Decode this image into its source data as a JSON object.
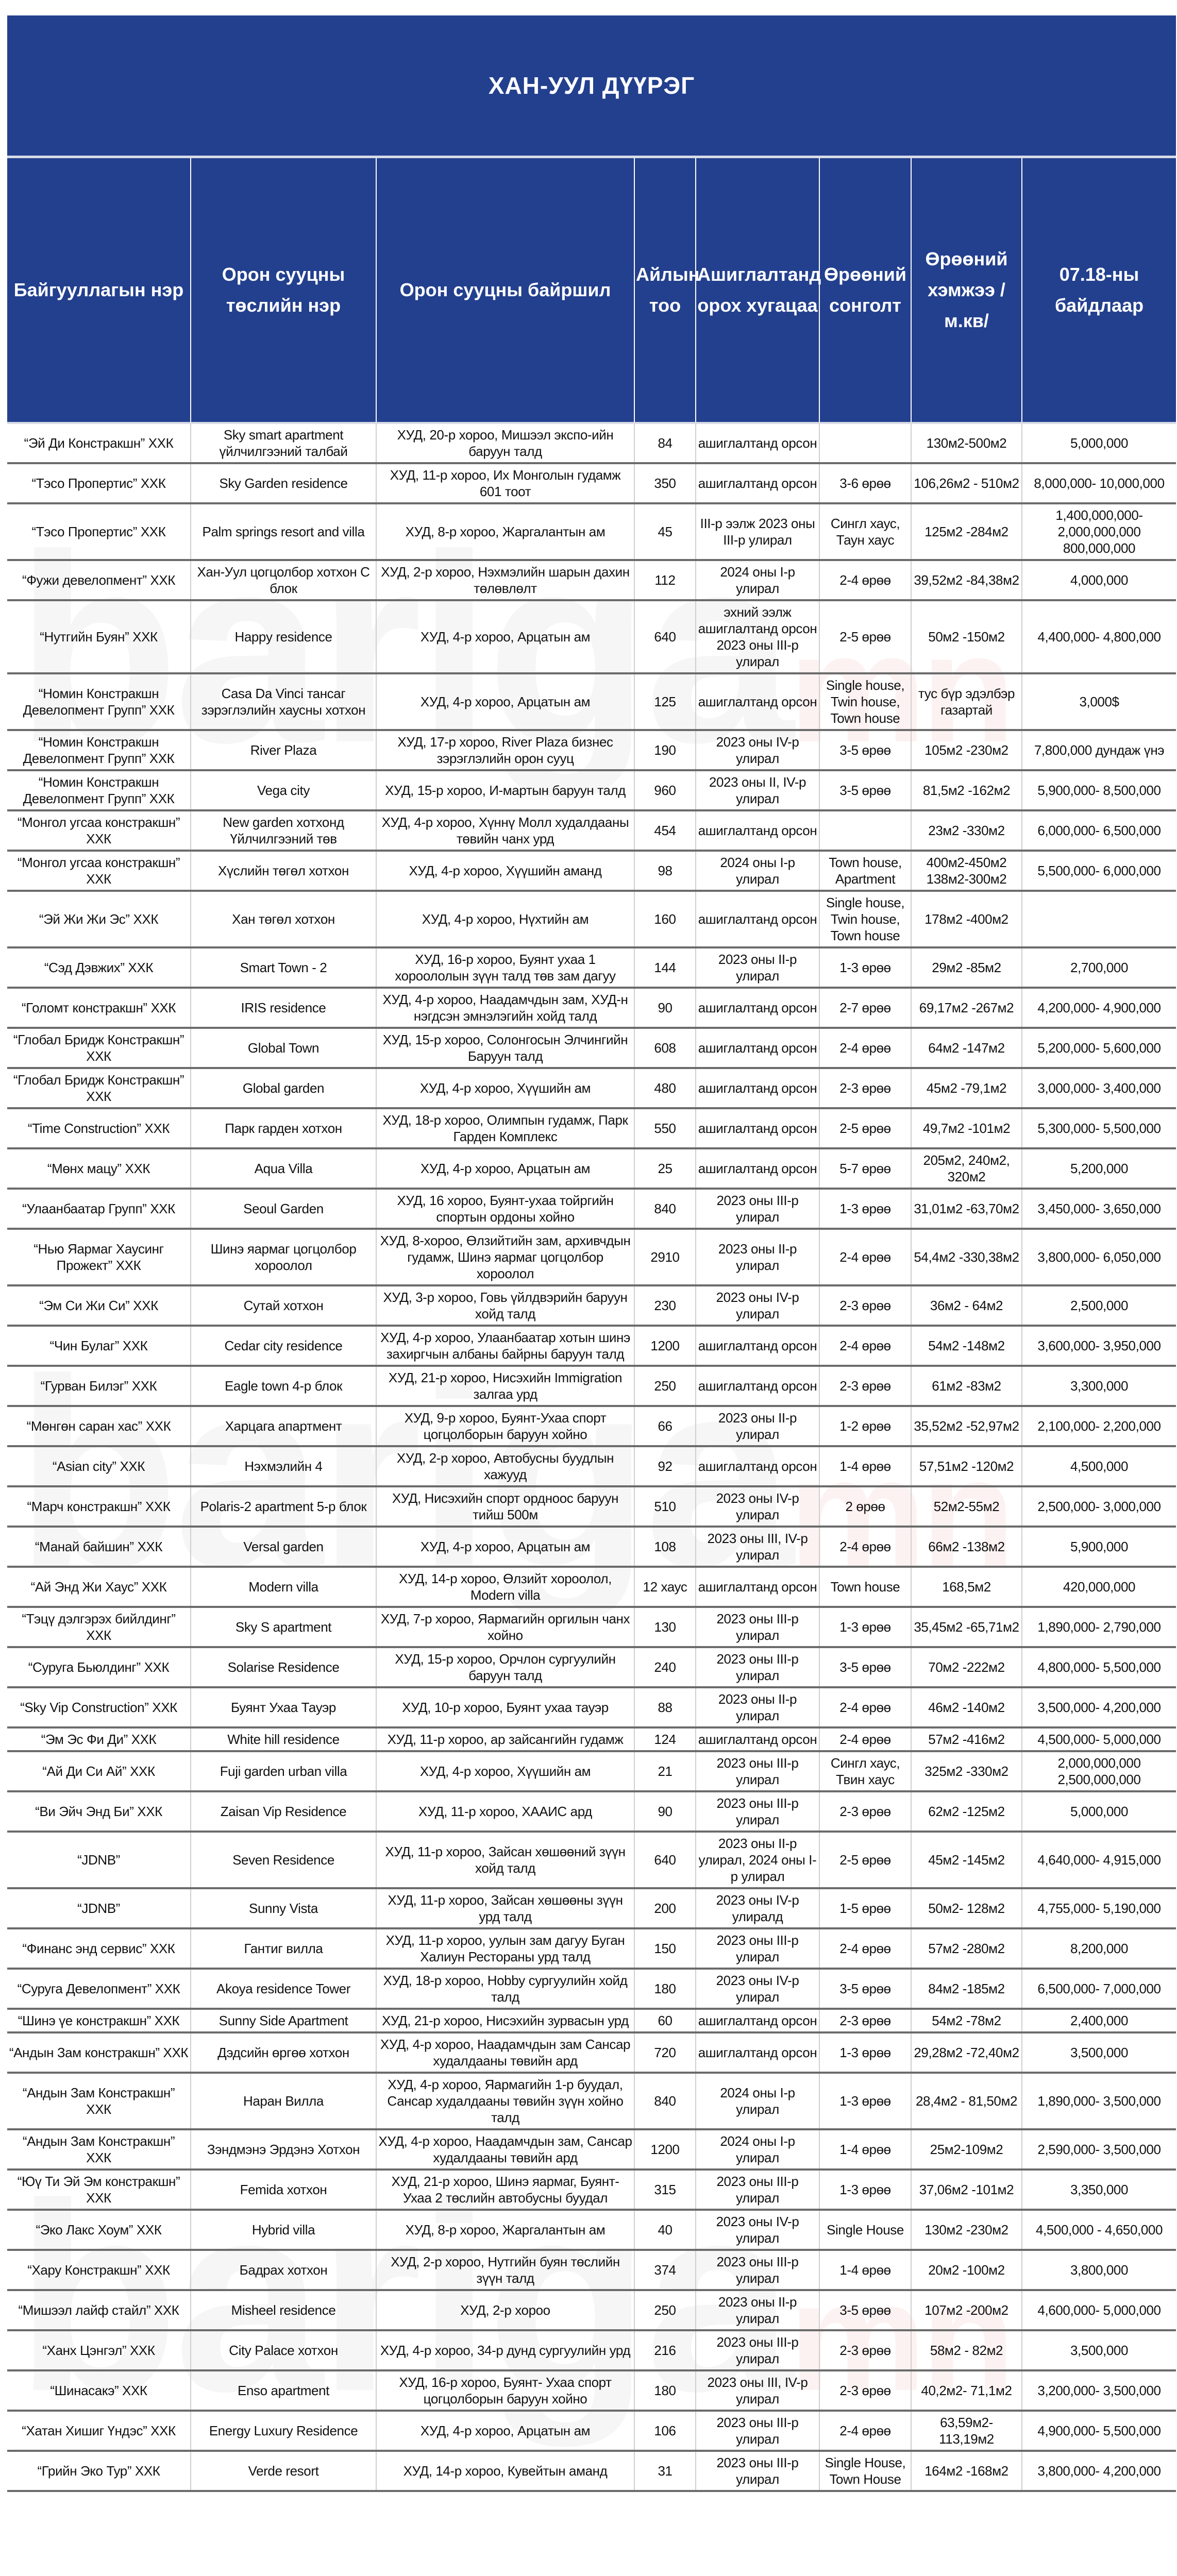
{
  "title": "ХАН-УУЛ ДҮҮРЭГ",
  "watermark": "bariga.mn",
  "colors": {
    "header_bg": "#23408e",
    "header_text": "#ffffff",
    "row_border": "#6b6b6b"
  },
  "columns": [
    "Байгууллагын нэр",
    "Орон сууцны төслийн нэр",
    "Орон сууцны байршил",
    "Айлын тоо",
    "Ашиглалтанд орох хугацаа",
    "Өрөөний сонголт",
    "Өрөөний хэмжээ /м.кв/",
    "07.18-ны байдлаар"
  ],
  "rows": [
    [
      "“Эй Ди Констракшн” ХХК",
      "Sky smart apartment үйлчилгээний талбай",
      "ХУД, 20-р хороо, Мишээл экспо-ийн баруун талд",
      "84",
      "ашиглалтанд орсон",
      "",
      "130м2-500м2",
      "5,000,000"
    ],
    [
      "“Тэсо Пропертис” ХХК",
      "Sky Garden residence",
      "ХУД, 11-р хороо, Их Монголын гудамж 601 тоот",
      "350",
      "ашиглалтанд орсон",
      "3-6 өрөө",
      "106,26м2 - 510м2",
      "8,000,000- 10,000,000"
    ],
    [
      "“Тэсо Пропертис” ХХК",
      "Palm springs resort and villa",
      "ХУД, 8-р хороо, Жаргалантын ам",
      "45",
      "III-р ээлж 2023 оны III-р улирал",
      "Сингл хаус, Таун хаус",
      "125м2 -284м2",
      "1,400,000,000- 2,000,000,000 800,000,000"
    ],
    [
      "“Фужи девелопмент” ХХК",
      "Хан-Уул цогцолбор хотхон C блок",
      "ХУД, 2-р хороо, Нэхмэлийн шарын дахин төлөвлөлт",
      "112",
      "2024 оны I-р улирал",
      "2-4 өрөө",
      "39,52м2 -84,38м2",
      "4,000,000"
    ],
    [
      "“Нутгийн Буян” ХХК",
      "Happy residence",
      "ХУД, 4-р хороо, Арцатын ам",
      "640",
      "эхний ээлж ашиглалтанд орсон 2023 оны III-р улирал",
      "2-5 өрөө",
      "50м2 -150м2",
      "4,400,000- 4,800,000"
    ],
    [
      "“Номин Констракшн Девелопмент Групп” ХХК",
      "Casa Da Vinci тансаг зэрэглэлийн хаусны хотхон",
      "ХУД, 4-р хороо, Арцатын ам",
      "125",
      "ашиглалтанд орсон",
      "Single house, Twin house, Town house",
      "тус бүр эдэлбэр газартай",
      "3,000$"
    ],
    [
      "“Номин Констракшн Девелопмент Групп” ХХК",
      "River Plaza",
      "ХУД, 17-р хороо, River Plaza бизнес зэрэглэлийн орон сууц",
      "190",
      "2023 оны IV-р улирал",
      "3-5 өрөө",
      "105м2 -230м2",
      "7,800,000 дундаж үнэ"
    ],
    [
      "“Номин Констракшн Девелопмент Групп” ХХК",
      "Vega city",
      "ХУД, 15-р хороо, И-мартын баруун талд",
      "960",
      "2023 оны II, IV-р улирал",
      "3-5 өрөө",
      "81,5м2 -162м2",
      "5,900,000- 8,500,000"
    ],
    [
      "“Монгол угсаа констракшн” ХХК",
      "New garden хотхонд Үйлчилгээний төв",
      "ХУД, 4-р хороо, Хүннү Молл худалдааны төвийн чанх урд",
      "454",
      "ашиглалтанд орсон",
      "",
      "23м2 -330м2",
      "6,000,000- 6,500,000"
    ],
    [
      "“Монгол угсаа констракшн” ХХК",
      "Хүслийн төгөл хотхон",
      "ХУД, 4-р хороо, Хүүшийн аманд",
      "98",
      "2024 оны I-р улирал",
      "Town house, Apartment",
      "400м2-450м2 138м2-300м2",
      "5,500,000- 6,000,000"
    ],
    [
      "“Эй Жи Жи Эс” ХХК",
      "Хан төгөл хотхон",
      "ХУД, 4-р хороо, Нүхтийн ам",
      "160",
      "ашиглалтанд орсон",
      "Single house, Twin house, Town house",
      "178м2 -400м2",
      ""
    ],
    [
      "“Сэд Дэвжих” ХХК",
      "Smart Town - 2",
      "ХУД, 16-р хороо, Буянт ухаа 1 хороололын зүүн талд төв зам дагуу",
      "144",
      "2023 оны II-р улирал",
      "1-3 өрөө",
      "29м2 -85м2",
      "2,700,000"
    ],
    [
      "“Голомт констракшн” ХХК",
      "IRIS residence",
      "ХУД, 4-р хороо, Наадамчдын зам, ХУД-н нэгдсэн эмнэлэгийн хойд талд",
      "90",
      "ашиглалтанд орсон",
      "2-7 өрөө",
      "69,17м2 -267м2",
      "4,200,000- 4,900,000"
    ],
    [
      "“Глобал Бридж Констракшн” ХХК",
      "Global Town",
      "ХУД, 15-р хороо, Солонгосын Элчингийн Баруун талд",
      "608",
      "ашиглалтанд орсон",
      "2-4 өрөө",
      "64м2 -147м2",
      "5,200,000- 5,600,000"
    ],
    [
      "“Глобал Бридж Констракшн” ХХК",
      "Global garden",
      "ХУД, 4-р хороо, Хүүшийн ам",
      "480",
      "ашиглалтанд орсон",
      "2-3 өрөө",
      "45м2 -79,1м2",
      "3,000,000- 3,400,000"
    ],
    [
      "“Time Construction” ХХК",
      "Парк гарден хотхон",
      "ХУД, 18-р хороо, Олимпын гудамж, Парк Гарден Комплекс",
      "550",
      "ашиглалтанд орсон",
      "2-5 өрөө",
      "49,7м2 -101м2",
      "5,300,000- 5,500,000"
    ],
    [
      "“Мөнх мацу” ХХК",
      "Aqua Villa",
      "ХУД, 4-р хороо, Арцатын ам",
      "25",
      "ашиглалтанд орсон",
      "5-7 өрөө",
      "205м2, 240м2, 320м2",
      "5,200,000"
    ],
    [
      "“Улаанбаатар Групп” ХХК",
      "Seoul Garden",
      "ХУД, 16 хороо, Буянт-ухаа тойргийн спортын ордоны хойно",
      "840",
      "2023 оны III-р улирал",
      "1-3 өрөө",
      "31,01м2 -63,70м2",
      "3,450,000- 3,650,000"
    ],
    [
      "“Нью Яармаг Хаусинг Прожект” ХХК",
      "Шинэ яармаг цогцолбор хороолол",
      "ХУД, 8-хороо, Өлзийтийн зам, архивчдын гудамж, Шинэ яармаг цогцолбор хороолол",
      "2910",
      "2023 оны II-р улирал",
      "2-4 өрөө",
      "54,4м2 -330,38м2",
      "3,800,000- 6,050,000"
    ],
    [
      "“Эм Си Жи Си” ХХК",
      "Сутай хотхон",
      "ХУД, 3-р хороо, Говь үйлдвэрийн баруун хойд талд",
      "230",
      "2023 оны IV-р улирал",
      "2-3 өрөө",
      "36м2 - 64м2",
      "2,500,000"
    ],
    [
      "“Чин Булаг” ХХК",
      "Cedar city residence",
      "ХУД, 4-р хороо, Улаанбаатар хотын шинэ захиргчын албаны байрны баруун талд",
      "1200",
      "ашиглалтанд орсон",
      "2-4 өрөө",
      "54м2 -148м2",
      "3,600,000- 3,950,000"
    ],
    [
      "“Гурван Билэг” ХХК",
      "Eagle town 4-р блок",
      "ХУД, 21-р хороо, Нисэхийн Immigration залгаа урд",
      "250",
      "ашиглалтанд орсон",
      "2-3 өрөө",
      "61м2 -83м2",
      "3,300,000"
    ],
    [
      "“Мөнгөн саран хас” ХХК",
      "Харцага апартмент",
      "ХУД, 9-р хороо, Буянт-Ухаа спорт цогцолборын баруун хойно",
      "66",
      "2023 оны II-р улирал",
      "1-2 өрөө",
      "35,52м2 -52,97м2",
      "2,100,000- 2,200,000"
    ],
    [
      "“Asian city” ХХК",
      "Нэхмэлийн 4",
      "ХУД, 2-р хороо, Автобусны буудлын хажууд",
      "92",
      "ашиглалтанд орсон",
      "1-4 өрөө",
      "57,51м2 -120м2",
      "4,500,000"
    ],
    [
      "“Марч констракшн” ХХК",
      "Polaris-2 apartment 5-р блок",
      "ХУД, Нисэхийн спорт ордноос баруун тийш 500м",
      "510",
      "2023 оны IV-р улирал",
      "2 өрөө",
      "52м2-55м2",
      "2,500,000- 3,000,000"
    ],
    [
      "“Манай байшин” ХХК",
      "Versal garden",
      "ХУД, 4-р хороо, Арцатын ам",
      "108",
      "2023 оны III, IV-р улирал",
      "2-4 өрөө",
      "66м2 -138м2",
      "5,900,000"
    ],
    [
      "“Ай Энд Жи Хаус” ХХК",
      "Modern villa",
      "ХУД, 14-р хороо, Өлзийт хороолол, Modern villa",
      "12 хаус",
      "ашиглалтанд орсон",
      "Town house",
      "168,5м2",
      "420,000,000"
    ],
    [
      "“Тэцү дэлгэрэх бийлдинг” ХХК",
      "Sky S apartment",
      "ХУД, 7-р хороо, Яармагийн оргилын чанх хойно",
      "130",
      "2023 оны III-р улирал",
      "1-3 өрөө",
      "35,45м2 -65,71м2",
      "1,890,000- 2,790,000"
    ],
    [
      "“Суруга Бьюлдинг” ХХК",
      "Solarise Residence",
      "ХУД, 15-р хороо, Орчлон сургуулийн баруун талд",
      "240",
      "2023 оны III-р улирал",
      "3-5 өрөө",
      "70м2 -222м2",
      "4,800,000- 5,500,000"
    ],
    [
      "“Sky Vip Construction” ХХК",
      "Буянт Ухаа Тауэр",
      "ХУД, 10-р хороо, Буянт ухаа тауэр",
      "88",
      "2023 оны II-р улирал",
      "2-4 өрөө",
      "46м2 -140м2",
      "3,500,000- 4,200,000"
    ],
    [
      "“Эм Эс Фи Ди” ХХК",
      "White hill residence",
      "ХУД, 11-р хороо, ар зайсангийн гудамж",
      "124",
      "ашиглалтанд орсон",
      "2-4 өрөө",
      "57м2 -416м2",
      "4,500,000- 5,000,000"
    ],
    [
      "“Ай Ди Си Ай” ХХК",
      "Fuji garden urban villa",
      "ХУД, 4-р хороо, Хүүшийн ам",
      "21",
      "2023 оны III-р улирал",
      "Сингл хаус, Твин хаус",
      "325м2 -330м2",
      "2,000,000,000 2,500,000,000"
    ],
    [
      "“Ви Эйч Энд Би” ХХК",
      "Zaisan Vip Residence",
      "ХУД, 11-р хороо, ХААИС ард",
      "90",
      "2023 оны III-р улирал",
      "2-3 өрөө",
      "62м2 -125м2",
      "5,000,000"
    ],
    [
      "“JDNB”",
      "Seven Residence",
      "ХУД, 11-р хороо, Зайсан хөшөөний зүүн хойд талд",
      "640",
      "2023 оны II-р улирал, 2024 оны I-р улирал",
      "2-5 өрөө",
      "45м2 -145м2",
      "4,640,000- 4,915,000"
    ],
    [
      "“JDNB”",
      "Sunny Vista",
      "ХУД, 11-р хороо, Зайсан хөшөөны зүүн урд талд",
      "200",
      "2023 оны IV-р улиралд",
      "1-5 өрөө",
      "50м2- 128м2",
      "4,755,000- 5,190,000"
    ],
    [
      "“Финанс энд сервис” ХХК",
      "Гантиг вилла",
      "ХУД, 11-р хороо, уулын зам дагуу Буган Халиун Рестораны урд талд",
      "150",
      "2023 оны III-р улирал",
      "2-4 өрөө",
      "57м2 -280м2",
      "8,200,000"
    ],
    [
      "“Суруга Девелопмент” ХХК",
      "Akoya residence Tower",
      "ХУД, 18-р хороо, Hobby сургуулийн хойд талд",
      "180",
      "2023 оны IV-р улирал",
      "3-5 өрөө",
      "84м2 -185м2",
      "6,500,000- 7,000,000"
    ],
    [
      "“Шинэ үе констракшн” ХХК",
      "Sunny Side Apartment",
      "ХУД, 21-р хороо, Нисэхийн зурвасын урд",
      "60",
      "ашиглалтанд орсон",
      "2-3 өрөө",
      "54м2 -78м2",
      "2,400,000"
    ],
    [
      "“Андын Зам констракшн” ХХК",
      "Дэдсийн өргөө хотхон",
      "ХУД, 4-р хороо, Наадамчдын зам Сансар худалдааны төвийн ард",
      "720",
      "ашиглалтанд орсон",
      "1-3 өрөө",
      "29,28м2 -72,40м2",
      "3,500,000"
    ],
    [
      "“Андын Зам Констракшн” ХХК",
      "Наран Вилла",
      "ХУД, 4-р хороо, Яармагийн 1-р буудал, Сансар худалдааны төвийн зүүн хойно талд",
      "840",
      "2024 оны I-р улирал",
      "1-3 өрөө",
      "28,4м2 - 81,50м2",
      "1,890,000- 3,500,000"
    ],
    [
      "“Андын Зам Констракшн” ХХК",
      "Зэндмэнэ Эрдэнэ Хотхон",
      "ХУД, 4-р хороо, Наадамчдын зам, Сансар худалдааны төвийн ард",
      "1200",
      "2024 оны I-р улирал",
      "1-4 өрөө",
      "25м2-109м2",
      "2,590,000- 3,500,000"
    ],
    [
      "“Юү Ти Эй Эм констракшн” ХХК",
      "Femida хотхон",
      "ХУД, 21-р хороо, Шинэ яармаг, Буянт-Ухаа 2 төслийн автобусны буудал",
      "315",
      "2023 оны III-р улирал",
      "1-3 өрөө",
      "37,06м2 -101м2",
      "3,350,000"
    ],
    [
      "“Эко Лакс Хоум” ХХК",
      "Hybrid villa",
      "ХУД, 8-р хороо, Жаргалантын ам",
      "40",
      "2023 оны IV-р улирал",
      "Single House",
      "130м2 -230м2",
      "4,500,000 - 4,650,000"
    ],
    [
      "“Хару Констракшн” ХХК",
      "Бадрах хотхон",
      "ХУД, 2-р хороо, Нутгийн буян төслийн зүүн талд",
      "374",
      "2023 оны III-р улирал",
      "1-4 өрөө",
      "20м2 -100м2",
      "3,800,000"
    ],
    [
      "“Мишээл лайф стайл” ХХК",
      "Misheel residence",
      "ХУД, 2-р хороо",
      "250",
      "2023 оны II-р улирал",
      "3-5 өрөө",
      "107м2 -200м2",
      "4,600,000- 5,000,000"
    ],
    [
      "“Ханх Цэнгэл” ХХК",
      "City Palace хотхон",
      "ХУД, 4-р хороо, 34-р дунд сургуулийн урд",
      "216",
      "2023 оны III-р улирал",
      "2-3 өрөө",
      "58м2 - 82м2",
      "3,500,000"
    ],
    [
      "“Шинасакэ” ХХК",
      "Enso apartment",
      "ХУД, 16-р хороо, Буянт- Ухаа спорт цогцолборын баруун хойно",
      "180",
      "2023 оны III, IV-р улирал",
      "2-3 өрөө",
      "40,2м2- 71,1м2",
      "3,200,000- 3,500,000"
    ],
    [
      "“Хатан Хишиг Үндэс” ХХК",
      "Energy Luxury Residence",
      "ХУД, 4-р хороо, Арцатын ам",
      "106",
      "2023 оны III-р улирал",
      "2-4 өрөө",
      "63,59м2- 113,19м2",
      "4,900,000- 5,500,000"
    ],
    [
      "“Грийн Эко Тур” ХХК",
      "Verde resort",
      "ХУД, 14-р хороо, Кувейтын аманд",
      "31",
      "2023 оны III-р улирал",
      "Single House, Town House",
      "164м2 -168м2",
      "3,800,000- 4,200,000"
    ]
  ]
}
